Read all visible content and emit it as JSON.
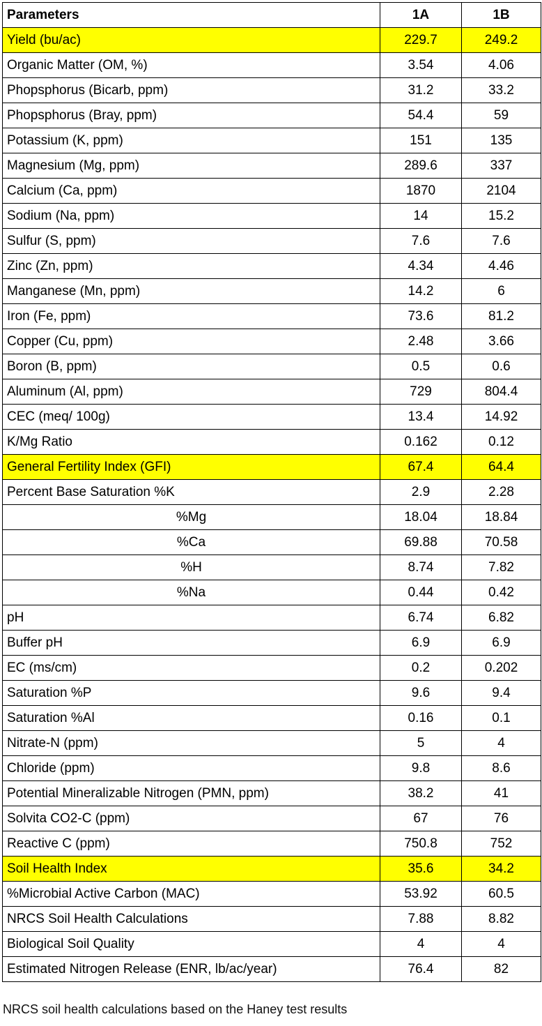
{
  "table": {
    "header": [
      "Parameters",
      "1A",
      "1B"
    ],
    "rows": [
      {
        "cells": [
          "Yield (bu/ac)",
          229.7,
          249.2
        ],
        "highlight": "#ffff00"
      },
      {
        "cells": [
          "Organic Matter (OM, %)",
          3.54,
          4.06
        ]
      },
      {
        "cells": [
          "Phopsphorus (Bicarb, ppm)",
          31.2,
          33.2
        ]
      },
      {
        "cells": [
          "Phopsphorus (Bray, ppm)",
          54.4,
          59
        ]
      },
      {
        "cells": [
          "Potassium (K, ppm)",
          151,
          135
        ]
      },
      {
        "cells": [
          "Magnesium (Mg, ppm)",
          289.6,
          337
        ]
      },
      {
        "cells": [
          "Calcium (Ca, ppm)",
          1870,
          2104
        ]
      },
      {
        "cells": [
          "Sodium (Na, ppm)",
          14,
          15.2
        ]
      },
      {
        "cells": [
          "Sulfur (S, ppm)",
          7.6,
          7.6
        ]
      },
      {
        "cells": [
          "Zinc (Zn, ppm)",
          4.34,
          4.46
        ]
      },
      {
        "cells": [
          "Manganese (Mn, ppm)",
          14.2,
          6
        ]
      },
      {
        "cells": [
          "Iron (Fe, ppm)",
          73.6,
          81.2
        ]
      },
      {
        "cells": [
          "Copper (Cu, ppm)",
          2.48,
          3.66
        ]
      },
      {
        "cells": [
          "Boron (B, ppm)",
          0.5,
          0.6
        ]
      },
      {
        "cells": [
          "Aluminum (Al, ppm)",
          729,
          804.4
        ]
      },
      {
        "cells": [
          "CEC (meq/ 100g)",
          13.4,
          14.92
        ]
      },
      {
        "cells": [
          "K/Mg Ratio",
          0.162,
          0.12
        ]
      },
      {
        "cells": [
          "General Fertility Index (GFI)",
          67.4,
          64.4
        ],
        "highlight": "#ffff00"
      },
      {
        "cells": [
          "Percent Base Saturation  %K",
          2.9,
          2.28
        ]
      },
      {
        "cells": [
          "%Mg",
          18.04,
          18.84
        ],
        "align": "center"
      },
      {
        "cells": [
          "%Ca",
          69.88,
          70.58
        ],
        "align": "center"
      },
      {
        "cells": [
          "%H",
          8.74,
          7.82
        ],
        "align": "center"
      },
      {
        "cells": [
          "%Na",
          0.44,
          0.42
        ],
        "align": "center"
      },
      {
        "cells": [
          "pH",
          6.74,
          6.82
        ]
      },
      {
        "cells": [
          "Buffer pH",
          6.9,
          6.9
        ]
      },
      {
        "cells": [
          "EC (ms/cm)",
          0.2,
          0.202
        ]
      },
      {
        "cells": [
          "Saturation %P",
          9.6,
          9.4
        ]
      },
      {
        "cells": [
          "Saturation %Al",
          0.16,
          0.1
        ]
      },
      {
        "cells": [
          "Nitrate-N (ppm)",
          5,
          4
        ]
      },
      {
        "cells": [
          "Chloride (ppm)",
          9.8,
          8.6
        ]
      },
      {
        "cells": [
          "Potential Mineralizable Nitrogen (PMN, ppm)",
          38.2,
          41
        ]
      },
      {
        "cells": [
          "Solvita CO2-C (ppm)",
          67,
          76
        ]
      },
      {
        "cells": [
          "Reactive C (ppm)",
          750.8,
          752
        ]
      },
      {
        "cells": [
          "Soil Health Index",
          35.6,
          34.2
        ],
        "highlight": "#ffff00"
      },
      {
        "cells": [
          "%Microbial Active Carbon (MAC)",
          53.92,
          60.5
        ]
      },
      {
        "cells": [
          "NRCS Soil Health Calculations",
          7.88,
          8.82
        ]
      },
      {
        "cells": [
          "Biological Soil Quality",
          4,
          4
        ]
      },
      {
        "cells": [
          "Estimated Nitrogen Release (ENR, lb/ac/year)",
          76.4,
          82
        ]
      }
    ]
  },
  "footnote": "NRCS soil health calculations based on the Haney test results"
}
